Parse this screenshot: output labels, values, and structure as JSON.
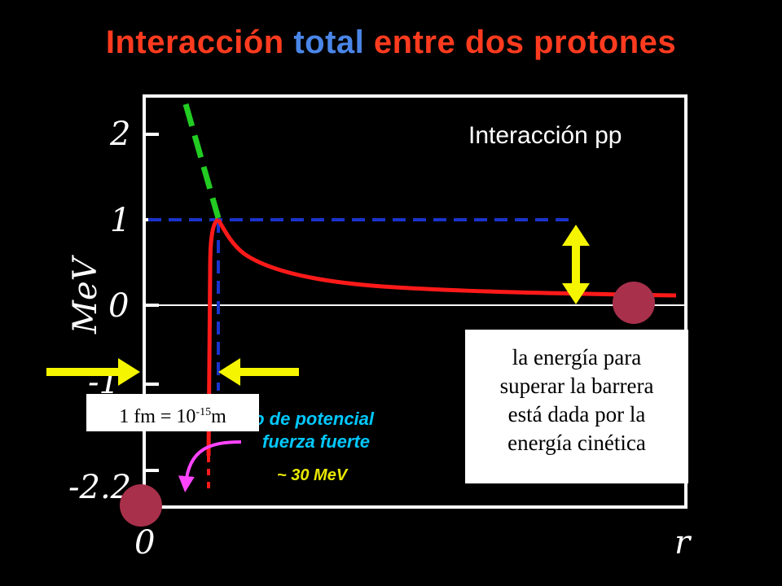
{
  "title": {
    "part1": "Interacción ",
    "part2": "total",
    "part3": " entre dos protones",
    "color_main": "#ff3b1f",
    "color_highlight": "#4a86e8"
  },
  "chart_data": {
    "type": "line",
    "title": "Interacción pp",
    "ylabel": "MeV",
    "xlabel": "r",
    "x_origin_label": "0",
    "y_ticks": [
      {
        "value": 2,
        "label": "2"
      },
      {
        "value": 1,
        "label": "1"
      },
      {
        "value": 0,
        "label": "0"
      },
      {
        "value": -1,
        "label": "-1"
      },
      {
        "value": -2.2,
        "label": "-2.2"
      }
    ],
    "ylim": [
      -2.5,
      2.3
    ],
    "series": [
      {
        "role": "coulomb-barrier",
        "color": "#ff1a1a",
        "style": "solid",
        "points": [
          [
            1.0,
            1.0
          ],
          [
            1.2,
            0.75
          ],
          [
            1.5,
            0.55
          ],
          [
            2,
            0.4
          ],
          [
            2.5,
            0.32
          ],
          [
            3,
            0.27
          ],
          [
            4,
            0.2
          ],
          [
            5,
            0.16
          ],
          [
            6,
            0.13
          ],
          [
            7,
            0.12
          ]
        ]
      },
      {
        "role": "nuclear-well-wall",
        "color": "#ff1a1a",
        "style": "solid",
        "points": [
          [
            0.97,
            1.0
          ],
          [
            0.95,
            -2.2
          ]
        ]
      },
      {
        "role": "nuclear-well-extension",
        "color": "#ff1a1a",
        "style": "dotted",
        "points": [
          [
            0.95,
            -2.2
          ],
          [
            0.95,
            -2.5
          ]
        ]
      },
      {
        "role": "extrapolation",
        "color": "#22cc22",
        "style": "dashed",
        "points": [
          [
            0.6,
            2.3
          ],
          [
            1.0,
            1.0
          ]
        ]
      }
    ],
    "guides": {
      "horizontal_at": 1,
      "vertical_at_x": 1,
      "color": "#1a33cc"
    }
  },
  "well_annotation": {
    "line1": "Pozo de potencial",
    "line2": "fuerza fuerte",
    "depth": "~ 30 MeV",
    "color": "#00c8ff",
    "depth_color": "#e8e800"
  },
  "fm_box": {
    "prefix": "1 fm = 10",
    "exponent": "-15",
    "suffix": "m"
  },
  "info_box": {
    "lines": [
      "la energía para",
      "superar la barrera",
      "está dada por la",
      "energía cinética"
    ]
  },
  "colors": {
    "arrow_yellow": "#f5f500",
    "particle": "#a8304a",
    "frame": "#ffffff",
    "curve_red": "#ff1a1a",
    "magenta_arrow": "#ff44ff"
  }
}
